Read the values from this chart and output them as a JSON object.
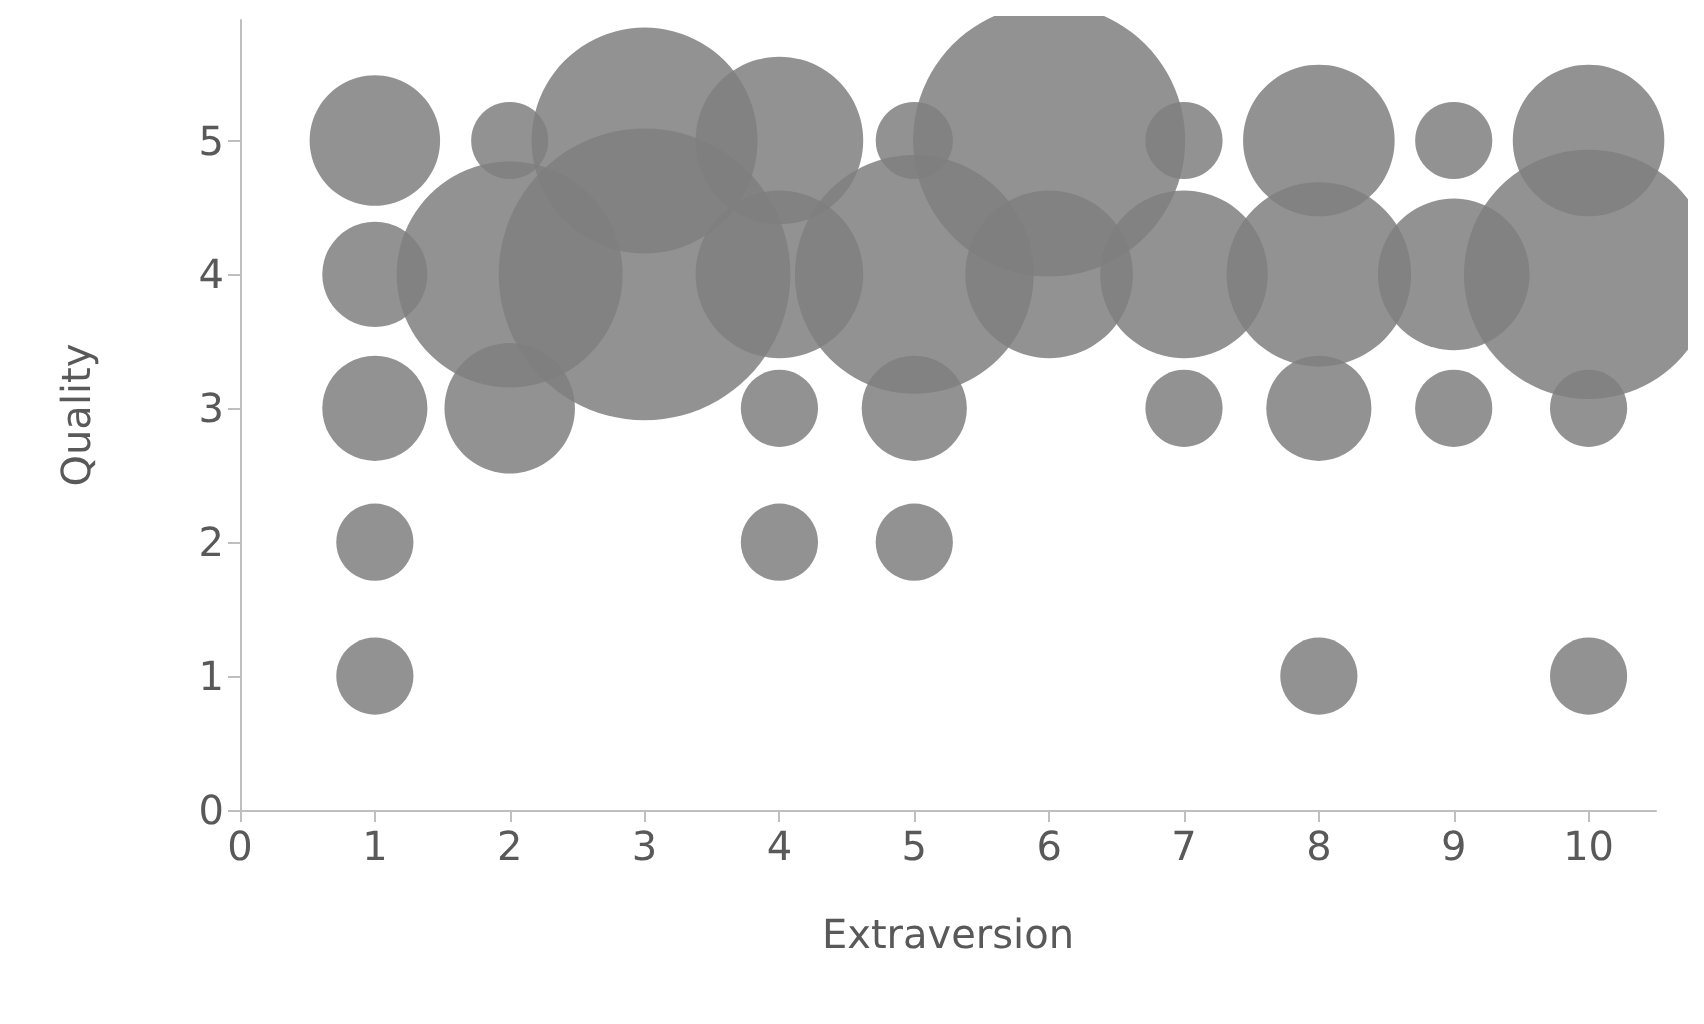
{
  "chart_data": {
    "type": "bubble",
    "xlabel": "Extraversion",
    "ylabel": "Quality",
    "xlim": [
      0,
      10.5
    ],
    "xticks": [
      0,
      1,
      2,
      3,
      4,
      5,
      6,
      7,
      8,
      9,
      10
    ],
    "ylim": [
      0,
      5.9
    ],
    "yticks": [
      0,
      1,
      2,
      3,
      4,
      5
    ],
    "grid": false,
    "series": [
      {
        "color": "#7f7f7f",
        "x": [
          1,
          1,
          1,
          1,
          1,
          2,
          2,
          2,
          3,
          3,
          4,
          4,
          4,
          4,
          5,
          5,
          5,
          5,
          6,
          6,
          7,
          7,
          7,
          8,
          8,
          8,
          8,
          9,
          9,
          9,
          10,
          10,
          10,
          10
        ],
        "values": [
          5,
          4,
          3,
          2,
          1,
          5,
          4,
          3,
          5,
          4,
          5,
          4,
          3,
          2,
          5,
          4,
          3,
          2,
          5,
          4,
          5,
          4,
          3,
          5,
          4,
          3,
          1,
          5,
          4,
          3,
          5,
          4,
          3,
          1
        ],
        "sizes": [
          0.2,
          0.13,
          0.13,
          0.07,
          0.07,
          0.07,
          0.6,
          0.2,
          0.6,
          1,
          0.33,
          0.33,
          0.07,
          0.07,
          0.07,
          0.67,
          0.13,
          0.07,
          0.87,
          0.33,
          0.07,
          0.33,
          0.07,
          0.27,
          0.4,
          0.13,
          0.07,
          0.07,
          0.27,
          0.07,
          0.27,
          0.73,
          0.07,
          0.07
        ]
      }
    ]
  }
}
